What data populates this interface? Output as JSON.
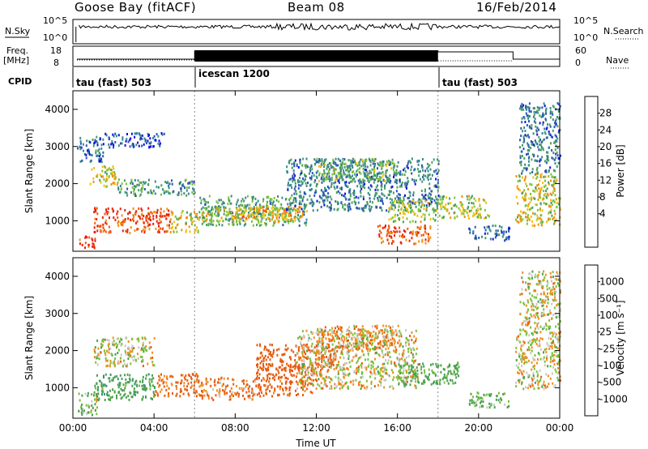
{
  "header": {
    "station": "Goose Bay (fitACF)",
    "beam": "Beam 08",
    "date": "16/Feb/2014"
  },
  "strip_labels": {
    "nsky": "N.Sky",
    "nsearch": "N.Search",
    "freq": "Freq.",
    "freq_unit": "[MHz]",
    "nave": "Nave",
    "cpid": "CPID",
    "noise_ticks": [
      "10^5",
      "10^0"
    ],
    "freq_ticks": [
      "18",
      "8"
    ],
    "nave_ticks": [
      "60",
      "0"
    ],
    "cpid_segments": [
      "tau (fast) 503",
      "icescan 1200",
      "tau (fast) 503"
    ]
  },
  "colorbars": {
    "power": {
      "label": "Power [dB]",
      "ticks": [
        "28",
        "24",
        "20",
        "16",
        "12",
        "8",
        "4"
      ]
    },
    "velocity": {
      "label": "Velocity [m s⁻¹]",
      "ticks": [
        "1000",
        "500",
        "100",
        "25",
        "-25",
        "-100",
        "-500",
        "-1000"
      ]
    }
  },
  "colors": {
    "power": [
      "#1010e0",
      "#2c56b4",
      "#3a8a8a",
      "#4aa060",
      "#7ec23a",
      "#f0c010",
      "#f09010",
      "#f05a10",
      "#e82010"
    ],
    "velocity": [
      "#1010e0",
      "#2c56b4",
      "#3a8a8a",
      "#4aa050",
      "#7ac23a",
      "#c8c8c4",
      "#f09020",
      "#e85a10",
      "#e81010"
    ]
  },
  "chart_data": [
    {
      "type": "heatmap",
      "name": "power",
      "ylabel": "Slant Range [km]",
      "yticks": [
        1000,
        2000,
        3000,
        4000
      ],
      "ylim": [
        180,
        4500
      ],
      "xlim": [
        0,
        24
      ],
      "xticks": [
        "00:00",
        "04:00",
        "08:00",
        "12:00",
        "16:00",
        "20:00",
        "00:00"
      ],
      "blobs": [
        {
          "t": [
            0.2,
            1.1
          ],
          "r": [
            300,
            650
          ],
          "v": 27
        },
        {
          "t": [
            1.0,
            4.8
          ],
          "r": [
            700,
            1380
          ],
          "v": 26
        },
        {
          "t": [
            4.8,
            6.2
          ],
          "r": [
            700,
            1300
          ],
          "v": 18
        },
        {
          "t": [
            0.8,
            2.2
          ],
          "r": [
            1950,
            2500
          ],
          "v": 18
        },
        {
          "t": [
            2.2,
            6.0
          ],
          "r": [
            1700,
            2150
          ],
          "v": 11
        },
        {
          "t": [
            0.2,
            1.5
          ],
          "r": [
            2600,
            3300
          ],
          "v": 7
        },
        {
          "t": [
            1.5,
            4.5
          ],
          "r": [
            3000,
            3400
          ],
          "v": 6
        },
        {
          "t": [
            6.2,
            11.5
          ],
          "r": [
            900,
            1700
          ],
          "v": 12
        },
        {
          "t": [
            6.2,
            11.0
          ],
          "r": [
            1000,
            1400
          ],
          "v": 18
        },
        {
          "t": [
            8.0,
            11.5
          ],
          "r": [
            1100,
            1400
          ],
          "v": 20
        },
        {
          "t": [
            10.5,
            18.0
          ],
          "r": [
            1300,
            2700
          ],
          "v": 9
        },
        {
          "t": [
            12.0,
            16.0
          ],
          "r": [
            2100,
            2700
          ],
          "v": 14
        },
        {
          "t": [
            15.5,
            18.0
          ],
          "r": [
            1000,
            1600
          ],
          "v": 16
        },
        {
          "t": [
            15.0,
            17.6
          ],
          "r": [
            400,
            900
          ],
          "v": 26
        },
        {
          "t": [
            18.0,
            20.5
          ],
          "r": [
            1100,
            1700
          ],
          "v": 16
        },
        {
          "t": [
            19.5,
            21.5
          ],
          "r": [
            500,
            900
          ],
          "v": 8
        },
        {
          "t": [
            21.8,
            24.0
          ],
          "r": [
            900,
            2300
          ],
          "v": 18
        },
        {
          "t": [
            22.0,
            24.0
          ],
          "r": [
            2300,
            4200
          ],
          "v": 9
        }
      ]
    },
    {
      "type": "heatmap",
      "name": "velocity",
      "ylabel": "Slant Range [km]",
      "xlabel": "Time UT",
      "yticks": [
        1000,
        2000,
        3000,
        4000
      ],
      "ylim": [
        180,
        4500
      ],
      "xlim": [
        0,
        24
      ],
      "xticks": [
        "00:00",
        "04:00",
        "08:00",
        "12:00",
        "16:00",
        "20:00",
        "00:00"
      ],
      "blobs": [
        {
          "t": [
            0.2,
            1.2
          ],
          "r": [
            300,
            900
          ],
          "v": 60
        },
        {
          "t": [
            1.0,
            4.0
          ],
          "r": [
            700,
            1400
          ],
          "v": 200
        },
        {
          "t": [
            4.0,
            6.2
          ],
          "r": [
            800,
            1400
          ],
          "v": -150
        },
        {
          "t": [
            1.0,
            4.0
          ],
          "r": [
            1600,
            2400
          ],
          "v": 10
        },
        {
          "t": [
            6.2,
            9.0
          ],
          "r": [
            700,
            1300
          ],
          "v": -120
        },
        {
          "t": [
            9.0,
            12.0
          ],
          "r": [
            800,
            1600
          ],
          "v": -200
        },
        {
          "t": [
            9.0,
            13.0
          ],
          "r": [
            1500,
            2200
          ],
          "v": -300
        },
        {
          "t": [
            11.0,
            17.0
          ],
          "r": [
            1000,
            2600
          ],
          "v": 0
        },
        {
          "t": [
            12.0,
            16.0
          ],
          "r": [
            2000,
            2700
          ],
          "v": -60
        },
        {
          "t": [
            16.0,
            19.0
          ],
          "r": [
            1100,
            1700
          ],
          "v": 150
        },
        {
          "t": [
            19.5,
            21.5
          ],
          "r": [
            500,
            900
          ],
          "v": 90
        },
        {
          "t": [
            21.8,
            24.0
          ],
          "r": [
            1000,
            2500
          ],
          "v": 5
        },
        {
          "t": [
            22.0,
            24.0
          ],
          "r": [
            2500,
            4200
          ],
          "v": 0
        }
      ]
    }
  ]
}
